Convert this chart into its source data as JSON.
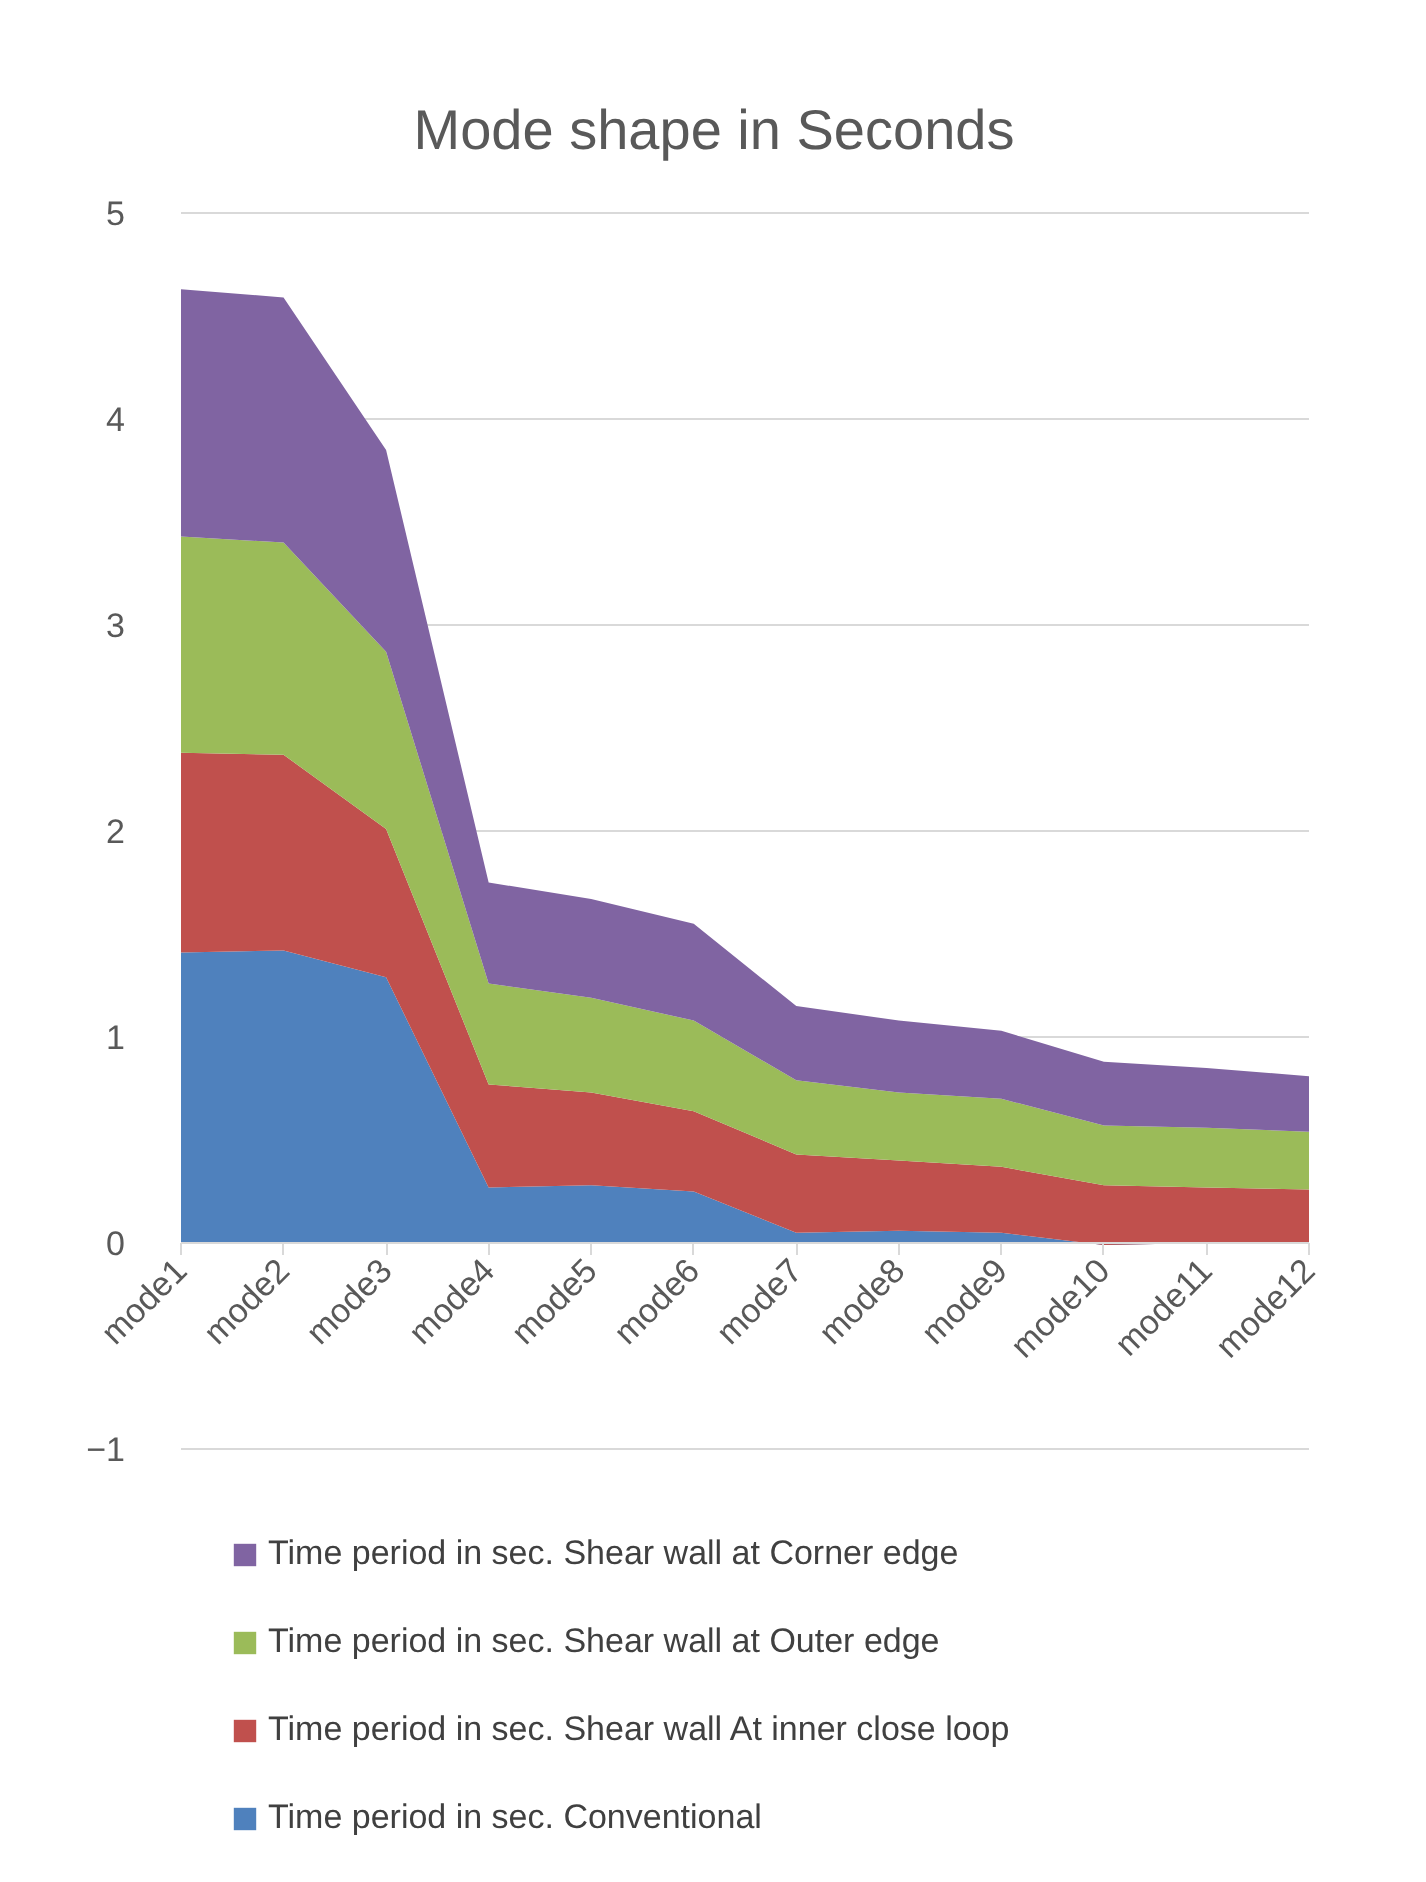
{
  "chart_data": {
    "type": "area",
    "stacked": true,
    "title": "Mode shape in Seconds",
    "categories": [
      "mode1",
      "mode2",
      "mode3",
      "mode4",
      "mode5",
      "mode6",
      "mode7",
      "mode8",
      "mode9",
      "mode10",
      "mode11",
      "mode12"
    ],
    "series": [
      {
        "name": "Time period in sec. Conventional",
        "color": "#4f81bd",
        "values": [
          1.41,
          1.42,
          1.29,
          0.27,
          0.28,
          0.25,
          0.05,
          0.06,
          0.05,
          -0.01,
          0,
          0
        ]
      },
      {
        "name": "Time period in sec. Shear wall At inner close loop",
        "color": "#c0504d",
        "values": [
          0.97,
          0.95,
          0.72,
          0.5,
          0.45,
          0.39,
          0.38,
          0.34,
          0.32,
          0.29,
          0.27,
          0.26
        ]
      },
      {
        "name": "Time period in sec. Shear wall at Outer edge",
        "color": "#9bbb59",
        "values": [
          1.05,
          1.03,
          0.86,
          0.49,
          0.46,
          0.44,
          0.36,
          0.33,
          0.33,
          0.29,
          0.29,
          0.28
        ]
      },
      {
        "name": "Time period in sec. Shear wall at Corner edge",
        "color": "#8064a2",
        "values": [
          1.2,
          1.19,
          0.98,
          0.49,
          0.48,
          0.47,
          0.36,
          0.35,
          0.33,
          0.31,
          0.29,
          0.27
        ]
      }
    ],
    "ylim": [
      -1,
      5
    ],
    "yticks": [
      -1,
      0,
      1,
      2,
      3,
      4,
      5
    ],
    "grid": "y",
    "legend": "bottom"
  }
}
